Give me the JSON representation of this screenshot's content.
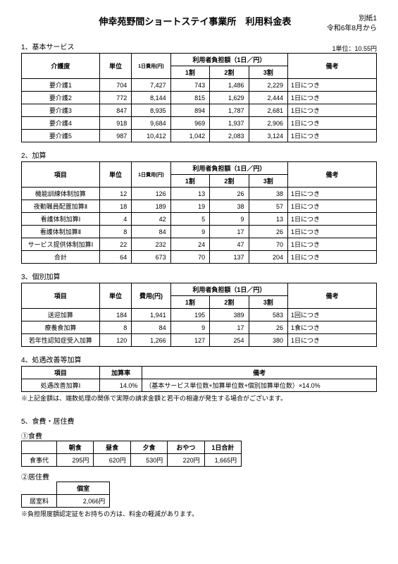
{
  "header": {
    "title": "伸幸苑野間ショートステイ事業所　利用料金表",
    "attachment": "別紙1",
    "date": "令和6年8月から",
    "unit_note": "1単位：10.55円"
  },
  "section1": {
    "label": "1、基本サービス",
    "table": {
      "headers": {
        "c1": "介護度",
        "c2": "単位",
        "c3": "1日費用(円)",
        "c4": "利用者負担額（1日／円）",
        "c4a": "1割",
        "c4b": "2割",
        "c4c": "3割",
        "c5": "備考"
      },
      "rows": [
        {
          "name": "要介護1",
          "unit": "704",
          "cost": "7,427",
          "b1": "743",
          "b2": "1,486",
          "b3": "2,229",
          "note": "1日につき"
        },
        {
          "name": "要介護2",
          "unit": "772",
          "cost": "8,144",
          "b1": "815",
          "b2": "1,629",
          "b3": "2,444",
          "note": "1日につき"
        },
        {
          "name": "要介護3",
          "unit": "847",
          "cost": "8,935",
          "b1": "894",
          "b2": "1,787",
          "b3": "2,681",
          "note": "1日につき"
        },
        {
          "name": "要介護4",
          "unit": "918",
          "cost": "9,684",
          "b1": "969",
          "b2": "1,937",
          "b3": "2,906",
          "note": "1日につき"
        },
        {
          "name": "要介護5",
          "unit": "987",
          "cost": "10,412",
          "b1": "1,042",
          "b2": "2,083",
          "b3": "3,124",
          "note": "1日につき"
        }
      ]
    }
  },
  "section2": {
    "label": "2、加算",
    "table": {
      "headers": {
        "c1": "項目",
        "c2": "単位",
        "c3": "1日費用(円)",
        "c4": "利用者負担額（1日／円）",
        "c4a": "1割",
        "c4b": "2割",
        "c4c": "3割",
        "c5": "備考"
      },
      "rows": [
        {
          "name": "機能訓練体制加算",
          "unit": "12",
          "cost": "126",
          "b1": "13",
          "b2": "26",
          "b3": "38",
          "note": "1日につき"
        },
        {
          "name": "夜勤職員配置加算Ⅱ",
          "unit": "18",
          "cost": "189",
          "b1": "19",
          "b2": "38",
          "b3": "57",
          "note": "1日につき"
        },
        {
          "name": "看護体制加算Ⅰ",
          "unit": "4",
          "cost": "42",
          "b1": "5",
          "b2": "9",
          "b3": "13",
          "note": "1日につき"
        },
        {
          "name": "看護体制加算Ⅱ",
          "unit": "8",
          "cost": "84",
          "b1": "9",
          "b2": "17",
          "b3": "26",
          "note": "1日につき"
        },
        {
          "name": "サービス提供体制加算Ⅰ",
          "unit": "22",
          "cost": "232",
          "b1": "24",
          "b2": "47",
          "b3": "70",
          "note": "1日につき"
        },
        {
          "name": "合計",
          "unit": "64",
          "cost": "673",
          "b1": "70",
          "b2": "137",
          "b3": "204",
          "note": "1日につき"
        }
      ]
    }
  },
  "section3": {
    "label": "3、個別加算",
    "table": {
      "headers": {
        "c1": "項目",
        "c2": "単位",
        "c3": "費用(円)",
        "c4": "利用者負担額（1日／円）",
        "c4a": "1割",
        "c4b": "2割",
        "c4c": "3割",
        "c5": "備考"
      },
      "rows": [
        {
          "name": "送迎加算",
          "unit": "184",
          "cost": "1,941",
          "b1": "195",
          "b2": "389",
          "b3": "583",
          "note": "1回につき"
        },
        {
          "name": "療養食加算",
          "unit": "8",
          "cost": "84",
          "b1": "9",
          "b2": "17",
          "b3": "26",
          "note": "1食につき"
        },
        {
          "name": "若年性認知症受入加算",
          "unit": "120",
          "cost": "1,266",
          "b1": "127",
          "b2": "254",
          "b3": "380",
          "note": "1日につき"
        }
      ]
    }
  },
  "section4": {
    "label": "4、処遇改善等加算",
    "table": {
      "headers": {
        "c1": "項目",
        "c2": "加算率",
        "c3": "備考"
      },
      "rows": [
        {
          "name": "処遇改善加算Ⅰ",
          "rate": "14.0%",
          "note": "（基本サービス単位数+加算単位数+個別加算単位数）×14.0%"
        }
      ]
    },
    "footnote": "※上記金額は、端数処理の関係で実際の請求金額と若干の相違が発生する場合がございます。"
  },
  "section5": {
    "label": "5、食費・居住費",
    "sub1": {
      "label": "①食費",
      "headers": {
        "c0": "",
        "c1": "朝食",
        "c2": "昼食",
        "c3": "夕食",
        "c4": "おやつ",
        "c5": "1日合計"
      },
      "row": {
        "name": "食事代",
        "v1": "295円",
        "v2": "620円",
        "v3": "530円",
        "v4": "220円",
        "v5": "1,665円"
      }
    },
    "sub2": {
      "label": "②居住費",
      "headers": {
        "c1": "個室"
      },
      "row": {
        "name": "居室料",
        "v1": "2,066円"
      }
    },
    "footnote": "※負担限度額認定証をお持ちの方は、料金の軽減があります。"
  }
}
